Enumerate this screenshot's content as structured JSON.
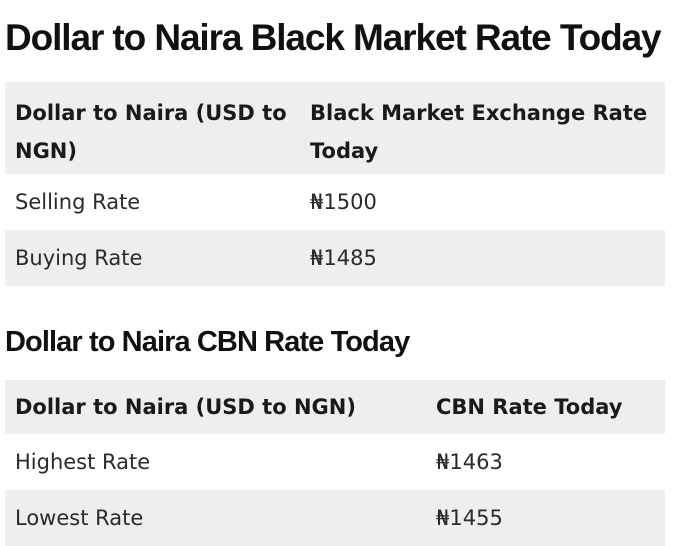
{
  "page_title": "Dollar to Naira Black Market Rate Today",
  "black_market_table": {
    "headers": [
      "Dollar to Naira (USD to NGN)",
      "Black Market Exchange Rate Today"
    ],
    "rows": [
      [
        "Selling Rate",
        "₦1500"
      ],
      [
        "Buying Rate",
        "₦1485"
      ]
    ]
  },
  "cbn_section_title": "Dollar to Naira CBN Rate Today",
  "cbn_table": {
    "headers": [
      "Dollar to Naira (USD to NGN)",
      "CBN Rate Today"
    ],
    "rows": [
      [
        "Highest Rate",
        "₦1463"
      ],
      [
        "Lowest Rate",
        "₦1455"
      ]
    ]
  },
  "colors": {
    "header_row_bg": "#eeeeee",
    "stripe_bg": "#eeeeee",
    "text": "#1a1a1a"
  }
}
